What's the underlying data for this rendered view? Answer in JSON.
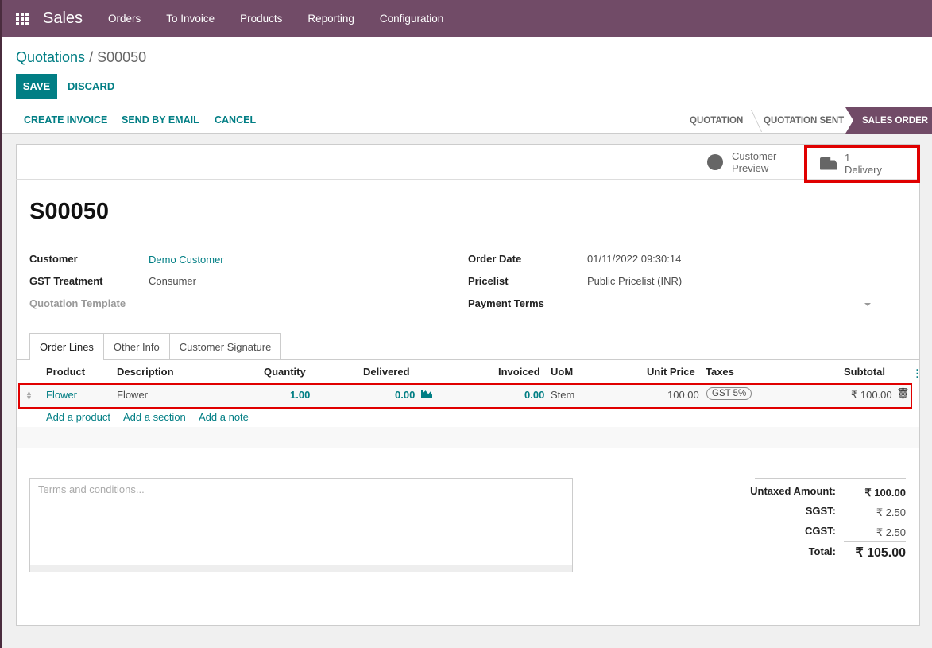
{
  "nav": {
    "app": "Sales",
    "menu": [
      "Orders",
      "To Invoice",
      "Products",
      "Reporting",
      "Configuration"
    ]
  },
  "breadcrumb": {
    "parent": "Quotations",
    "current": "S00050"
  },
  "buttons": {
    "save": "SAVE",
    "discard": "DISCARD",
    "create_invoice": "CREATE INVOICE",
    "send_email": "SEND BY EMAIL",
    "cancel": "CANCEL"
  },
  "stages": [
    "QUOTATION",
    "QUOTATION SENT",
    "SALES ORDER"
  ],
  "smart": {
    "preview_1": "Customer",
    "preview_2": "Preview",
    "delivery_count": "1",
    "delivery_label": "Delivery"
  },
  "title": "S00050",
  "fields": {
    "customer_l": "Customer",
    "customer": "Demo Customer",
    "gst_l": "GST Treatment",
    "gst": "Consumer",
    "template_l": "Quotation Template",
    "date_l": "Order Date",
    "date": "01/11/2022 09:30:14",
    "pricelist_l": "Pricelist",
    "pricelist": "Public Pricelist (INR)",
    "terms_l": "Payment Terms"
  },
  "tabs": [
    "Order Lines",
    "Other Info",
    "Customer Signature"
  ],
  "columns": [
    "Product",
    "Description",
    "Quantity",
    "Delivered",
    "Invoiced",
    "UoM",
    "Unit Price",
    "Taxes",
    "Subtotal"
  ],
  "line": {
    "product": "Flower",
    "description": "Flower",
    "quantity": "1.00",
    "delivered": "0.00",
    "invoiced": "0.00",
    "uom": "Stem",
    "unit_price": "100.00",
    "tax": "GST 5%",
    "subtotal": "₹ 100.00"
  },
  "add": {
    "product": "Add a product",
    "section": "Add a section",
    "note": "Add a note"
  },
  "terms_placeholder": "Terms and conditions...",
  "totals": {
    "untaxed_l": "Untaxed Amount:",
    "untaxed": "₹ 100.00",
    "sgst_l": "SGST:",
    "sgst": "₹ 2.50",
    "cgst_l": "CGST:",
    "cgst": "₹ 2.50",
    "total_l": "Total:",
    "total": "₹ 105.00"
  }
}
